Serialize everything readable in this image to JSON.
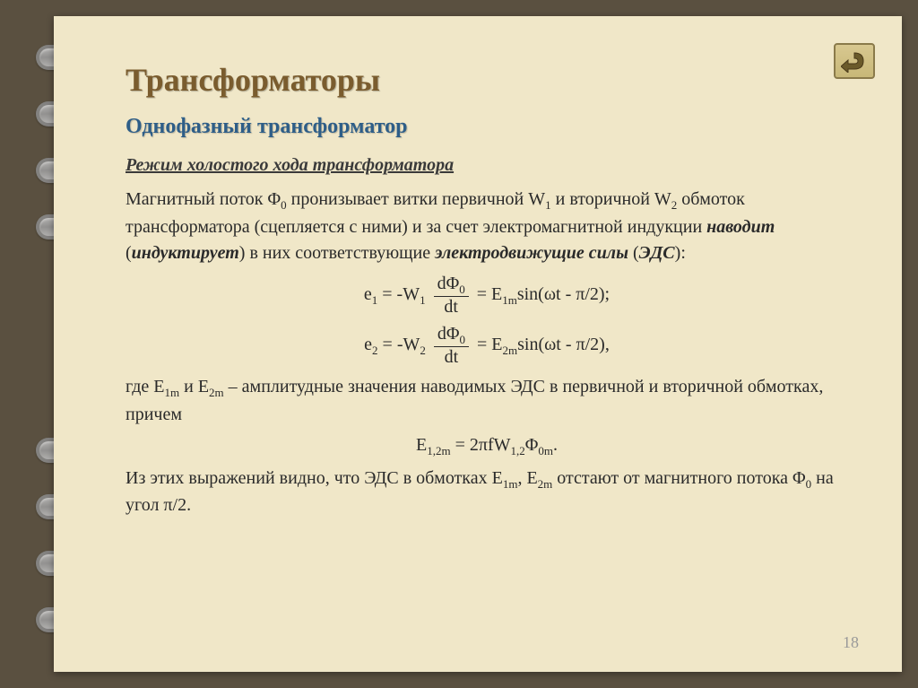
{
  "colors": {
    "page_bg": "#f0e7c8",
    "outer_bg": "#5a5040",
    "title_color": "#7a5c2e",
    "subtitle_color": "#2e5e88",
    "text_color": "#2a2a2a",
    "pagenum_color": "#999999"
  },
  "title": "Трансформаторы",
  "subtitle": "Однофазный трансформатор",
  "section_head": "Режим холостого хода трансформатора",
  "para1": {
    "t1": "Магнитный поток Φ",
    "s1": "0",
    "t2": " пронизывает витки первичной W",
    "s2": "1",
    "t3": " и вторичной W",
    "s3": "2",
    "t4": " обмоток трансформатора (сцепляется с ними) и за счет электромагнитной индукции ",
    "b1": "наводит",
    "t5": "  (",
    "i1": "индуктирует",
    "t6": ") в них соответствующие ",
    "b2": "электродвижущие силы",
    "t7": " (",
    "i2": "ЭДС",
    "t8": "):"
  },
  "eq1": {
    "lhs_sym": "e",
    "lhs_sub": "1",
    "rhs1_pre": " = -W",
    "rhs1_sub": "1",
    "frac_num": "dΦ",
    "frac_num_sub": "0",
    "frac_den": "dt",
    "rhs2_pre": " = E",
    "rhs2_sub": "1m",
    "rhs2_post": "sin(ωt - π/2)",
    "tail": ";"
  },
  "eq2": {
    "lhs_sym": "e",
    "lhs_sub": "2",
    "rhs1_pre": " = -W",
    "rhs1_sub": "2",
    "frac_num": "dΦ",
    "frac_num_sub": "0",
    "frac_den": "dt",
    "rhs2_pre": " = E",
    "rhs2_sub": "2m",
    "rhs2_post": "sin(ωt - π/2)",
    "tail": ","
  },
  "para2": {
    "t1": "где E",
    "s1": "1m",
    "t2": " и E",
    "s2": "2m",
    "t3": " – амплитудные значения наводимых ЭДС в первичной и вторичной обмотках, причем"
  },
  "eq3": {
    "lhs": "E",
    "lhs_sub": "1,2m",
    "mid": " = 2πfW",
    "mid_sub": "1,2",
    "rhs": "Φ",
    "rhs_sub": "0m",
    "tail": "."
  },
  "para3": {
    "t1": "Из этих выражений видно, что ЭДС в обмотках E",
    "s1": "1m",
    "t2": ",  E",
    "s2": "2m",
    "t3": " отстают от магнитного потока Φ",
    "s3": "0",
    "t4": "  на угол π/2."
  },
  "pagenum": "18",
  "back_button_name": "back-button"
}
